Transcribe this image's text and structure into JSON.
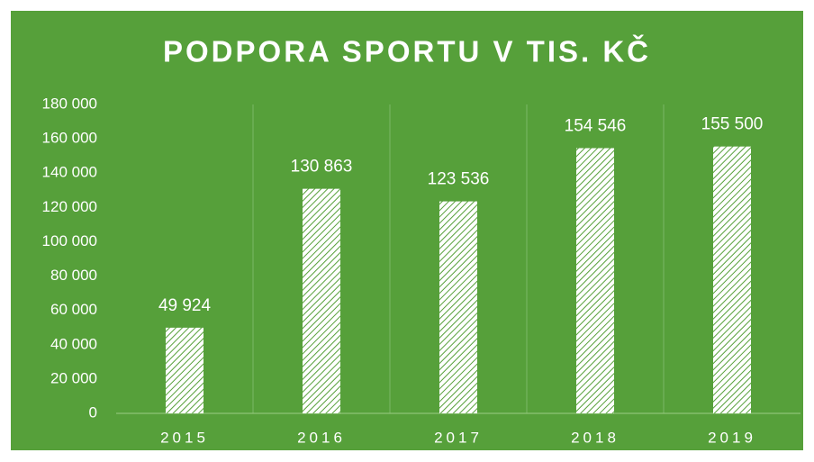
{
  "chart_data": {
    "type": "bar",
    "title": "PODPORA SPORTU V TIS. KČ",
    "categories": [
      "2015",
      "2016",
      "2017",
      "2018",
      "2019"
    ],
    "values": [
      49924,
      130863,
      123536,
      154546,
      155500
    ],
    "value_labels": [
      "49 924",
      "130 863",
      "123 536",
      "154 546",
      "155 500"
    ],
    "color": "#ffffff",
    "ylim": [
      0,
      180000
    ],
    "yticks": [
      0,
      {
        "value": 20000,
        "label": "20 000"
      },
      {
        "value": 40000,
        "label": "40 000"
      },
      {
        "value": 60000,
        "label": "60 000"
      },
      {
        "value": 80000,
        "label": "80 000"
      },
      {
        "value": 100000,
        "label": "100 000"
      },
      {
        "value": 120000,
        "label": "120 000"
      },
      {
        "value": 140000,
        "label": "140 000"
      },
      {
        "value": 160000,
        "label": "160 000"
      },
      {
        "value": 180000,
        "label": "180 000"
      }
    ],
    "grid": false
  }
}
